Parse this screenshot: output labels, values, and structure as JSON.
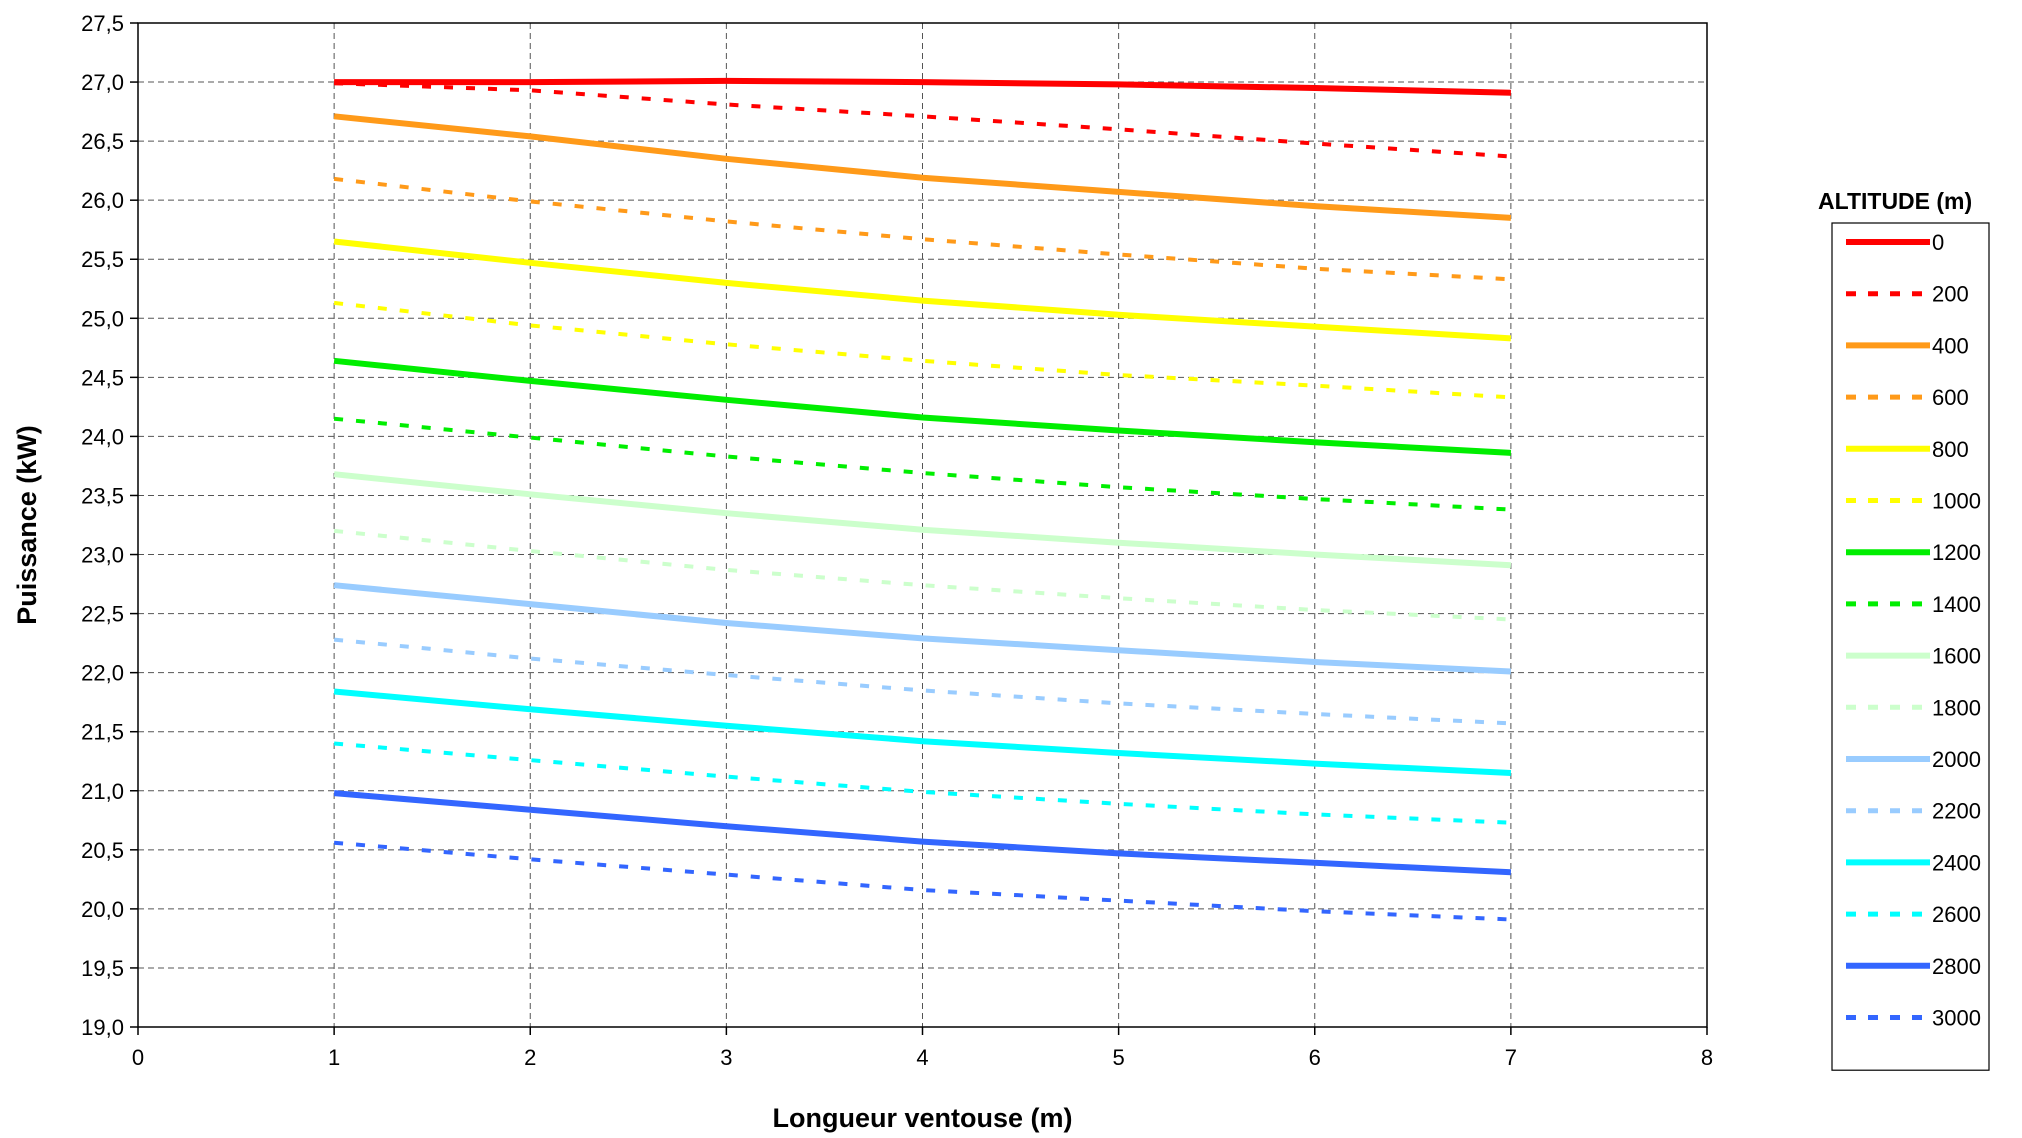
{
  "chart_data": {
    "type": "line",
    "xlabel": "Longueur ventouse (m)",
    "ylabel": "Puissance (kW)",
    "xlim": [
      0,
      8
    ],
    "ylim": [
      19.0,
      27.5
    ],
    "x_ticks": [
      "0",
      "1",
      "2",
      "3",
      "4",
      "5",
      "6",
      "7",
      "8"
    ],
    "y_ticks": [
      "19,0",
      "19,5",
      "20,0",
      "20,5",
      "21,0",
      "21,5",
      "22,0",
      "22,5",
      "23,0",
      "23,5",
      "24,0",
      "24,5",
      "25,0",
      "25,5",
      "26,0",
      "26,5",
      "27,0",
      "27,5"
    ],
    "grid": true,
    "legend_title": "ALTITUDE (m)",
    "legend_position": "right",
    "x": [
      1,
      2,
      3,
      4,
      5,
      6,
      7
    ],
    "series": [
      {
        "name": "0",
        "color": "#ff0000",
        "style": "solid",
        "values": [
          27.0,
          27.0,
          27.01,
          27.0,
          26.98,
          26.95,
          26.91
        ]
      },
      {
        "name": "200",
        "color": "#ff0000",
        "style": "dashed",
        "values": [
          26.99,
          26.93,
          26.81,
          26.71,
          26.6,
          26.48,
          26.37
        ]
      },
      {
        "name": "400",
        "color": "#ff9a19",
        "style": "solid",
        "values": [
          26.71,
          26.54,
          26.35,
          26.19,
          26.07,
          25.95,
          25.85
        ]
      },
      {
        "name": "600",
        "color": "#ff9a19",
        "style": "dashed",
        "values": [
          26.18,
          25.99,
          25.82,
          25.67,
          25.54,
          25.42,
          25.33
        ]
      },
      {
        "name": "800",
        "color": "#ffff00",
        "style": "solid",
        "values": [
          25.65,
          25.47,
          25.3,
          25.15,
          25.03,
          24.93,
          24.83
        ]
      },
      {
        "name": "1000",
        "color": "#ffff00",
        "style": "dashed",
        "values": [
          25.13,
          24.94,
          24.78,
          24.64,
          24.52,
          24.43,
          24.33
        ]
      },
      {
        "name": "1200",
        "color": "#00ee00",
        "style": "solid",
        "values": [
          24.64,
          24.47,
          24.31,
          24.16,
          24.05,
          23.95,
          23.86
        ]
      },
      {
        "name": "1400",
        "color": "#00ee00",
        "style": "dashed",
        "values": [
          24.15,
          23.99,
          23.83,
          23.69,
          23.57,
          23.47,
          23.38
        ]
      },
      {
        "name": "1600",
        "color": "#ccffcc",
        "style": "solid",
        "values": [
          23.68,
          23.51,
          23.35,
          23.21,
          23.1,
          23.0,
          22.91
        ]
      },
      {
        "name": "1800",
        "color": "#ccffcc",
        "style": "dashed",
        "values": [
          23.2,
          23.03,
          22.87,
          22.74,
          22.63,
          22.53,
          22.45
        ]
      },
      {
        "name": "2000",
        "color": "#99ccff",
        "style": "solid",
        "values": [
          22.74,
          22.58,
          22.42,
          22.29,
          22.19,
          22.09,
          22.01
        ]
      },
      {
        "name": "2200",
        "color": "#99ccff",
        "style": "dashed",
        "values": [
          22.28,
          22.12,
          21.98,
          21.85,
          21.74,
          21.65,
          21.57
        ]
      },
      {
        "name": "2400",
        "color": "#00ffff",
        "style": "solid",
        "values": [
          21.84,
          21.69,
          21.55,
          21.42,
          21.32,
          21.23,
          21.15
        ]
      },
      {
        "name": "2600",
        "color": "#00ffff",
        "style": "dashed",
        "values": [
          21.4,
          21.26,
          21.12,
          20.99,
          20.89,
          20.8,
          20.73
        ]
      },
      {
        "name": "2800",
        "color": "#3366ff",
        "style": "solid",
        "values": [
          20.98,
          20.84,
          20.7,
          20.57,
          20.47,
          20.39,
          20.31
        ]
      },
      {
        "name": "3000",
        "color": "#3366ff",
        "style": "dashed",
        "values": [
          20.56,
          20.42,
          20.29,
          20.16,
          20.07,
          19.98,
          19.91
        ]
      }
    ]
  }
}
